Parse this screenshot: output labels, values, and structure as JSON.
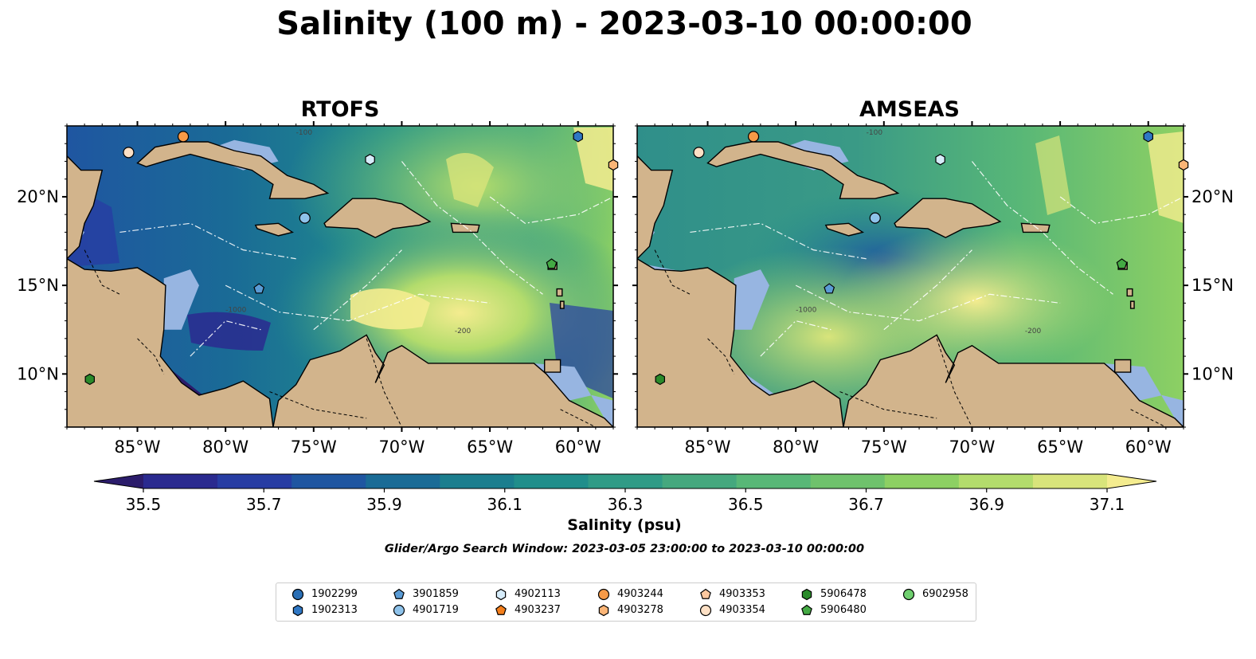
{
  "suptitle": "Salinity (100 m) - 2023-03-10 00:00:00",
  "colors": {
    "land": "#d2b48c",
    "shelf": "#97b5e1",
    "border": "#000000"
  },
  "chart_data": [
    {
      "type": "heatmap",
      "title": "RTOFS",
      "xlim": [
        -89,
        -58
      ],
      "ylim": [
        7,
        24
      ],
      "xticks": [
        -85,
        -80,
        -75,
        -70,
        -65,
        -60
      ],
      "xtick_labels": [
        "85°W",
        "80°W",
        "75°W",
        "70°W",
        "65°W",
        "60°W"
      ],
      "yticks": [
        10,
        15,
        20
      ],
      "ytick_labels": [
        "10°N",
        "15°N",
        "20°N"
      ],
      "ytick_side": "left",
      "field": "salinity_100m",
      "colormap": "summer/viridis-like"
    },
    {
      "type": "heatmap",
      "title": "AMSEAS",
      "xlim": [
        -89,
        -58
      ],
      "ylim": [
        7,
        24
      ],
      "xticks": [
        -85,
        -80,
        -75,
        -70,
        -65,
        -60
      ],
      "xtick_labels": [
        "85°W",
        "80°W",
        "75°W",
        "70°W",
        "65°W",
        "60°W"
      ],
      "yticks": [
        10,
        15,
        20
      ],
      "ytick_labels": [
        "10°N",
        "15°N",
        "20°N"
      ],
      "ytick_side": "right",
      "field": "salinity_100m",
      "colormap": "summer/viridis-like"
    }
  ],
  "colorbar": {
    "label": "Salinity (psu)",
    "min": 35.4,
    "max": 37.2,
    "extend": "both",
    "ticks": [
      35.5,
      35.7,
      35.9,
      36.1,
      36.3,
      36.5,
      36.7,
      36.9,
      37.1
    ],
    "tick_labels": [
      "35.5",
      "35.7",
      "35.9",
      "36.1",
      "36.3",
      "36.5",
      "36.7",
      "36.9",
      "37.1"
    ],
    "colors": [
      "#2b1c6b",
      "#2a2a8f",
      "#273da3",
      "#1f56a1",
      "#1a6b96",
      "#1b7e8e",
      "#208e8b",
      "#309b86",
      "#45a87e",
      "#58b777",
      "#6fc26c",
      "#8dd063",
      "#b3dc6c",
      "#d8e47b",
      "#f4ec8f"
    ]
  },
  "search_window": "Glider/Argo Search Window: 2023-03-05 23:00:00 to 2023-03-10 00:00:00",
  "legend": {
    "items": [
      {
        "label": "1902299",
        "marker": "circle",
        "color": "#2a6fb5"
      },
      {
        "label": "1902313",
        "marker": "hexagon",
        "color": "#2f77c4"
      },
      {
        "label": "3901859",
        "marker": "pentagon",
        "color": "#5a9bd5"
      },
      {
        "label": "4901719",
        "marker": "circle",
        "color": "#8ec2ea"
      },
      {
        "label": "4902113",
        "marker": "hexagon",
        "color": "#d6ecfa"
      },
      {
        "label": "4903237",
        "marker": "pentagon",
        "color": "#f47f1c"
      },
      {
        "label": "4903244",
        "marker": "circle",
        "color": "#f79a47"
      },
      {
        "label": "4903278",
        "marker": "hexagon",
        "color": "#fbb577"
      },
      {
        "label": "4903353",
        "marker": "pentagon",
        "color": "#fcc89f"
      },
      {
        "label": "4903354",
        "marker": "circle",
        "color": "#fde0c5"
      },
      {
        "label": "5906478",
        "marker": "hexagon",
        "color": "#2a8a2a"
      },
      {
        "label": "5906480",
        "marker": "pentagon",
        "color": "#44aa44"
      },
      {
        "label": "6902958",
        "marker": "circle",
        "color": "#6fcf6f"
      }
    ]
  },
  "floats": [
    {
      "id": "1902313",
      "lon": -60.0,
      "lat": 23.4
    },
    {
      "id": "4903244",
      "lon": -82.4,
      "lat": 23.4
    },
    {
      "id": "4903354",
      "lon": -85.5,
      "lat": 22.5
    },
    {
      "id": "4902113",
      "lon": -71.8,
      "lat": 22.1
    },
    {
      "id": "4903278",
      "lon": -58.0,
      "lat": 21.8
    },
    {
      "id": "4901719",
      "lon": -75.5,
      "lat": 18.8
    },
    {
      "id": "3901859",
      "lon": -78.1,
      "lat": 14.8
    },
    {
      "id": "5906480",
      "lon": -61.5,
      "lat": 16.2
    },
    {
      "id": "5906478",
      "lon": -87.7,
      "lat": 9.7
    }
  ],
  "contour_labels": [
    "-100",
    "-1000",
    "-200"
  ]
}
